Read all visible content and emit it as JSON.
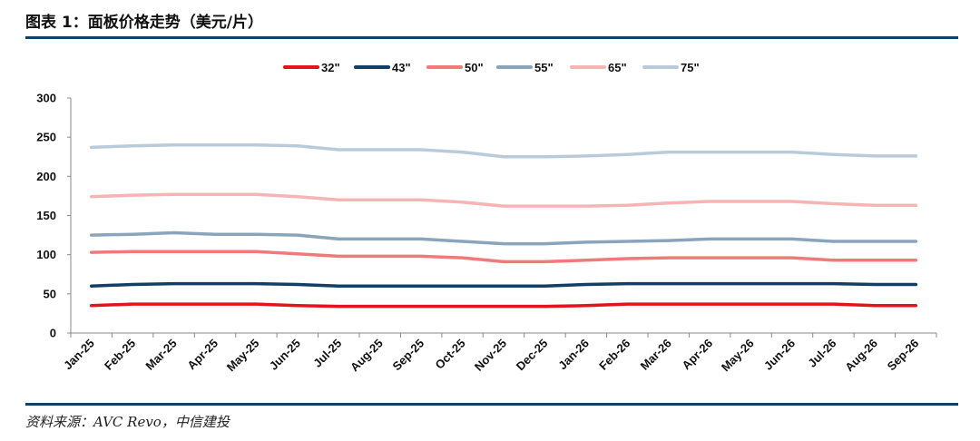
{
  "header": {
    "title": "图表 1：面板价格走势（美元/片）"
  },
  "footer": {
    "source": "资料来源：AVC Revo，中信建投"
  },
  "chart_data": {
    "type": "line",
    "title": "图表 1：面板价格走势（美元/片）",
    "xlabel": "",
    "ylabel": "",
    "ylim": [
      0,
      300
    ],
    "yticks": [
      0,
      50,
      100,
      150,
      200,
      250,
      300
    ],
    "grid": false,
    "legend_position": "top",
    "categories": [
      "Jan-25",
      "Feb-25",
      "Mar-25",
      "Apr-25",
      "May-25",
      "Jun-25",
      "Jul-25",
      "Aug-25",
      "Sep-25",
      "Oct-25",
      "Nov-25",
      "Dec-25",
      "Jan-26",
      "Feb-26",
      "Mar-26",
      "Apr-26",
      "May-26",
      "Jun-26",
      "Jul-26",
      "Aug-26",
      "Sep-26"
    ],
    "series": [
      {
        "name": "32\"",
        "color": "#e8121c",
        "values": [
          35,
          37,
          37,
          37,
          37,
          35,
          34,
          34,
          34,
          34,
          34,
          34,
          35,
          37,
          37,
          37,
          37,
          37,
          37,
          35,
          35
        ]
      },
      {
        "name": "43\"",
        "color": "#123f66",
        "values": [
          60,
          62,
          63,
          63,
          63,
          62,
          60,
          60,
          60,
          60,
          60,
          60,
          62,
          63,
          63,
          63,
          63,
          63,
          63,
          62,
          62
        ]
      },
      {
        "name": "50\"",
        "color": "#f07a7a",
        "values": [
          103,
          104,
          104,
          104,
          104,
          101,
          98,
          98,
          98,
          96,
          91,
          91,
          93,
          95,
          96,
          96,
          96,
          96,
          93,
          93,
          93
        ]
      },
      {
        "name": "55\"",
        "color": "#8aa5bb",
        "values": [
          125,
          126,
          128,
          126,
          126,
          125,
          120,
          120,
          120,
          117,
          114,
          114,
          116,
          117,
          118,
          120,
          120,
          120,
          117,
          117,
          117
        ]
      },
      {
        "name": "65\"",
        "color": "#f7b4b4",
        "values": [
          174,
          176,
          177,
          177,
          177,
          174,
          170,
          170,
          170,
          167,
          162,
          162,
          162,
          163,
          166,
          168,
          168,
          168,
          165,
          163,
          163
        ]
      },
      {
        "name": "75\"",
        "color": "#b9cbda",
        "values": [
          237,
          239,
          240,
          240,
          240,
          239,
          234,
          234,
          234,
          231,
          225,
          225,
          226,
          228,
          231,
          231,
          231,
          231,
          228,
          226,
          226
        ]
      }
    ]
  }
}
